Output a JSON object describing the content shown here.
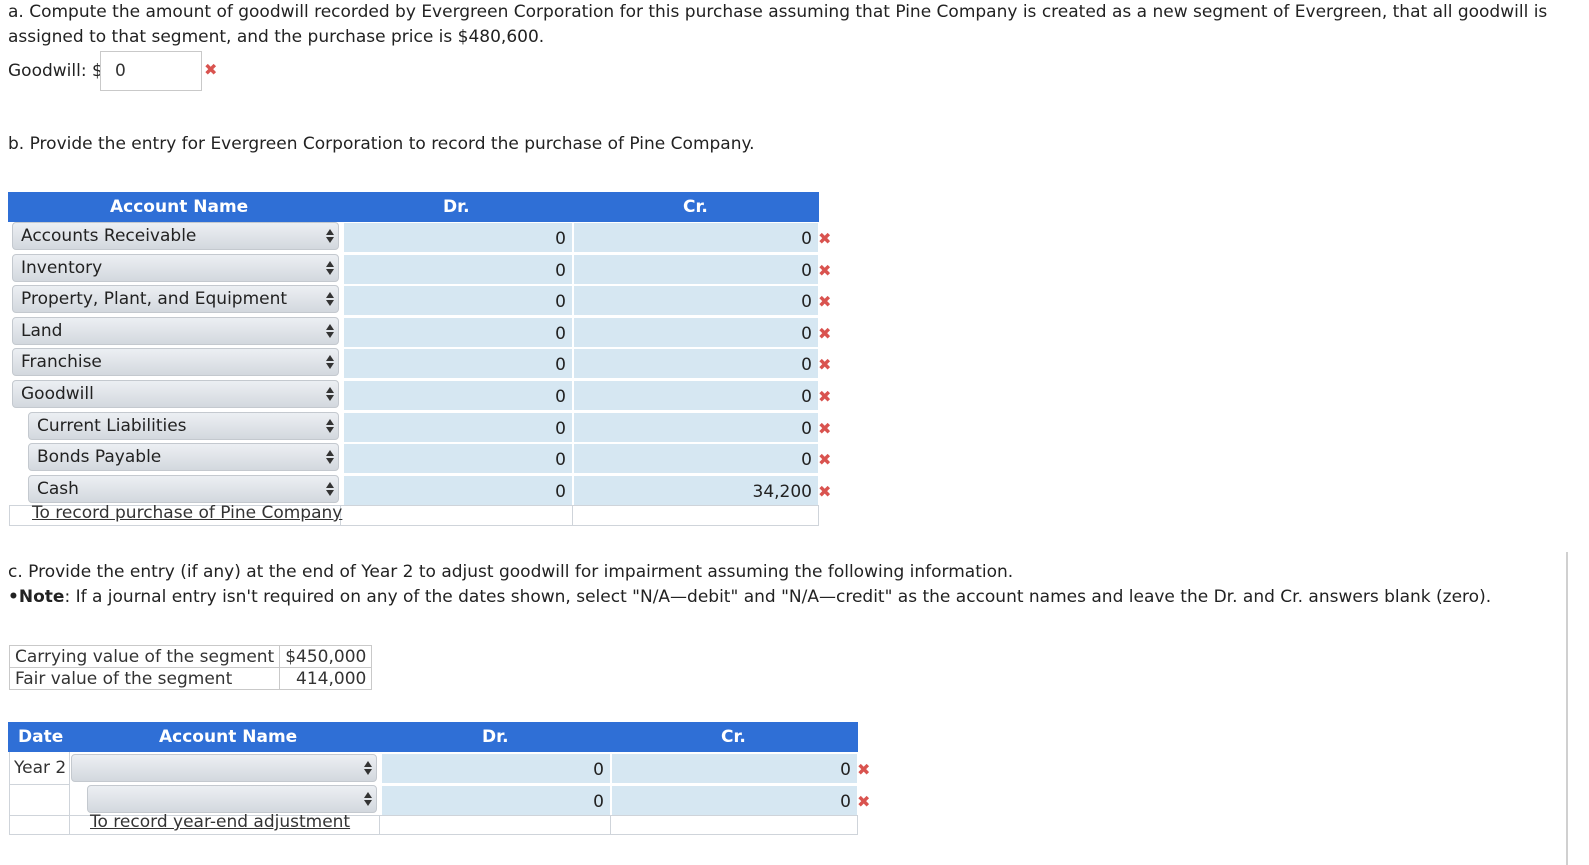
{
  "part_a": {
    "question": "a. Compute the amount of goodwill recorded by Evergreen Corporation for this purchase assuming that Pine Company is created as a new segment of Evergreen, that all goodwill is assigned to that segment, and the purchase price is $480,600.",
    "question_line1": "a. Compute the amount of goodwill recorded by Evergreen Corporation for this purchase assuming that Pine Company is created as a new segment of Evergreen, that all goodwill is",
    "question_line2": "assigned to that segment, and the purchase price is $480,600.",
    "label": "Goodwill: $",
    "value": "0",
    "mark": "✖"
  },
  "part_b": {
    "question": "b. Provide the entry for Evergreen Corporation to record the purchase of Pine Company.",
    "headers": {
      "account": "Account Name",
      "dr": "Dr.",
      "cr": "Cr."
    },
    "rows": [
      {
        "account": "Accounts Receivable",
        "dr": "0",
        "cr": "0",
        "mark": "✖"
      },
      {
        "account": "Inventory",
        "dr": "0",
        "cr": "0",
        "mark": "✖"
      },
      {
        "account": "Property, Plant, and Equipment",
        "dr": "0",
        "cr": "0",
        "mark": "✖"
      },
      {
        "account": "Land",
        "dr": "0",
        "cr": "0",
        "mark": "✖"
      },
      {
        "account": "Franchise",
        "dr": "0",
        "cr": "0",
        "mark": "✖"
      },
      {
        "account": "Goodwill",
        "dr": "0",
        "cr": "0",
        "mark": "✖"
      },
      {
        "account": "Current Liabilities",
        "dr": "0",
        "cr": "0",
        "mark": "✖"
      },
      {
        "account": "Bonds Payable",
        "dr": "0",
        "cr": "0",
        "mark": "✖"
      },
      {
        "account": "Cash",
        "dr": "0",
        "cr": "34,200",
        "mark": "✖"
      }
    ],
    "memo": "To record purchase of Pine Company"
  },
  "part_c": {
    "question": "c. Provide the entry (if any) at the end of Year 2 to adjust goodwill for impairment assuming the following information.",
    "note_bullet": "•",
    "note_bold": "Note",
    "note_text": ": If a journal entry isn't required on any of the dates shown, select \"N/A—debit\" and \"N/A—credit\" as the account names and leave the Dr. and Cr. answers blank (zero).",
    "info": [
      {
        "label": "Carrying value of the segment",
        "value": "$450,000"
      },
      {
        "label": "Fair value of the segment",
        "value": "414,000"
      }
    ],
    "headers": {
      "date": "Date",
      "account": "Account Name",
      "dr": "Dr.",
      "cr": "Cr."
    },
    "date": "Year 2",
    "rows": [
      {
        "account": "",
        "dr": "0",
        "cr": "0",
        "mark": "✖"
      },
      {
        "account": "",
        "dr": "0",
        "cr": "0",
        "mark": "✖"
      }
    ],
    "memo": "To record year-end adjustment"
  }
}
